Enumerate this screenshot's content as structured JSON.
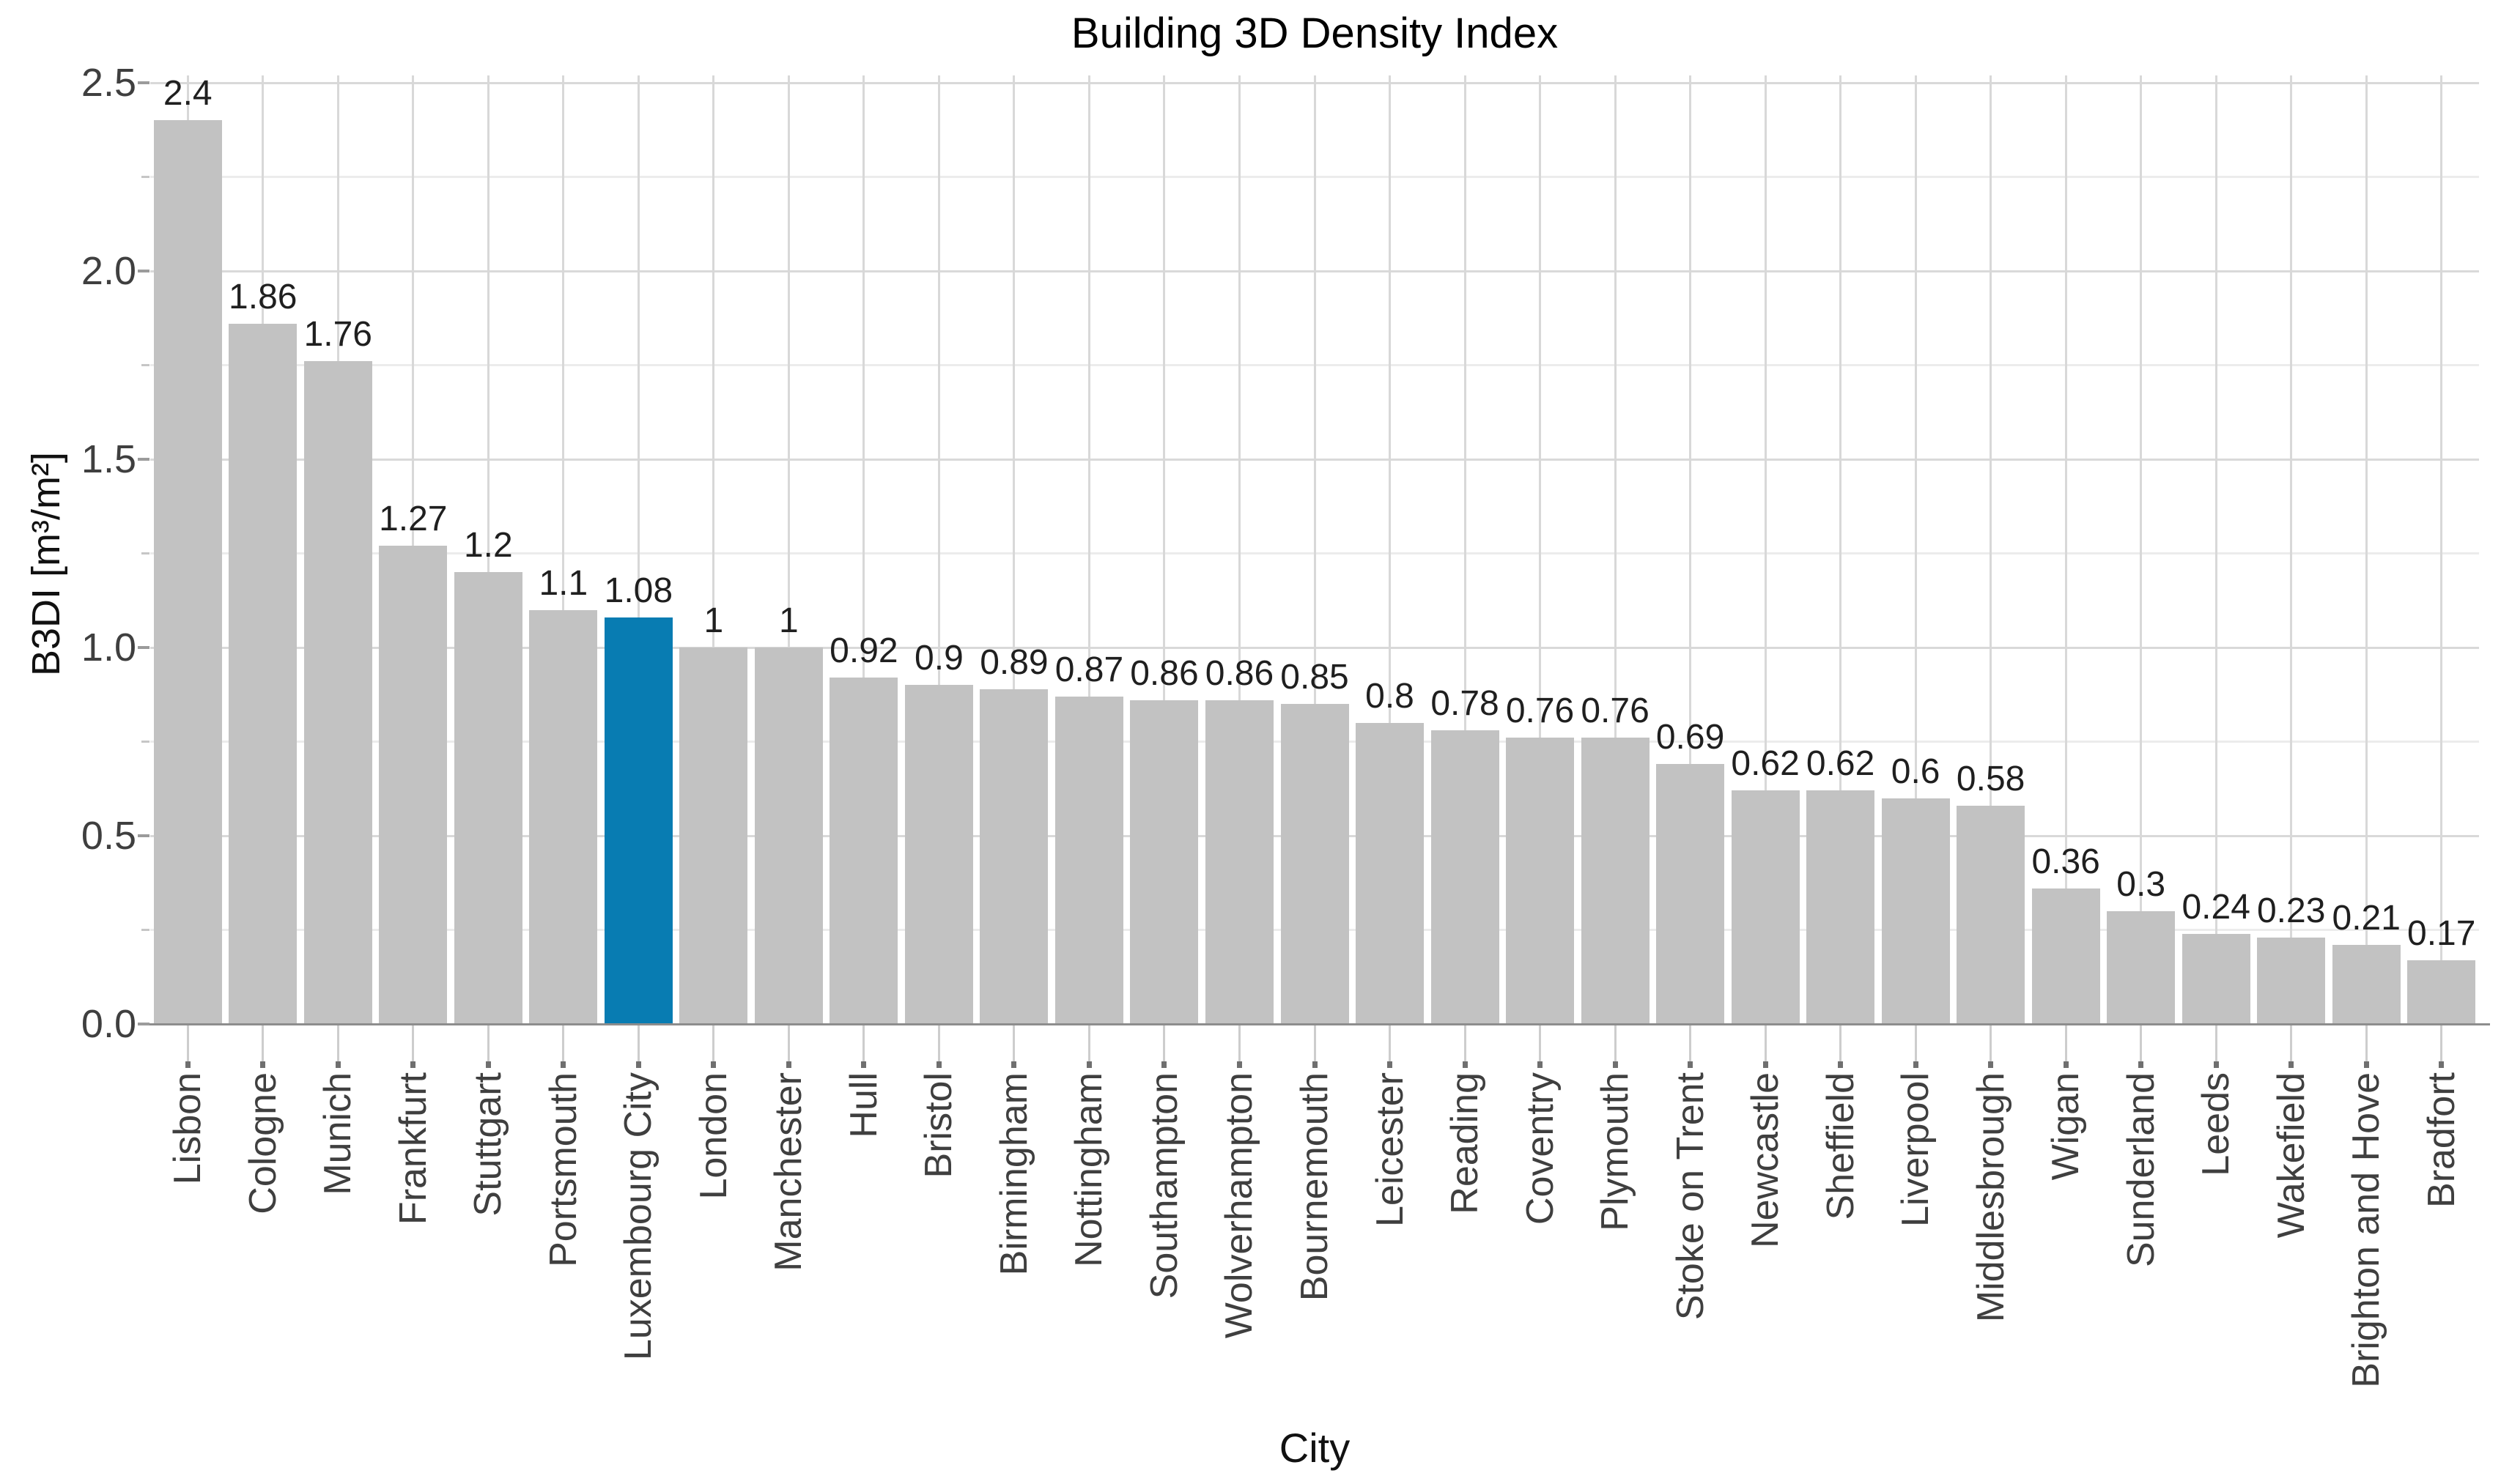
{
  "chart_data": {
    "type": "bar",
    "title": "Building 3D Density Index",
    "xlabel": "City",
    "ylabel": "B3DI [m³/m²]",
    "ylim": [
      0,
      2.5
    ],
    "y_major_step": 0.5,
    "y_minor_step": 0.25,
    "y_tick_labels": [
      "0.0",
      "0.5",
      "1.0",
      "1.5",
      "2.0",
      "2.5"
    ],
    "grid": "horizontal major+minor lines, vertical line at each category center",
    "legend_position": "none",
    "categories": [
      "Lisbon",
      "Cologne",
      "Munich",
      "Frankfurt",
      "Stuttgart",
      "Portsmouth",
      "Luxembourg City",
      "London",
      "Manchester",
      "Hull",
      "Bristol",
      "Birmingham",
      "Nottingham",
      "Southampton",
      "Wolverhampton",
      "Bournemouth",
      "Leicester",
      "Reading",
      "Coventry",
      "Plymouth",
      "Stoke on Trent",
      "Newcastle",
      "Sheffield",
      "Liverpool",
      "Middlesbrough",
      "Wigan",
      "Sunderland",
      "Leeds",
      "Wakefield",
      "Brighton and Hove",
      "Bradfort"
    ],
    "values": [
      2.4,
      1.86,
      1.76,
      1.27,
      1.2,
      1.1,
      1.08,
      1,
      1,
      0.92,
      0.9,
      0.89,
      0.87,
      0.86,
      0.86,
      0.85,
      0.8,
      0.78,
      0.76,
      0.76,
      0.69,
      0.62,
      0.62,
      0.6,
      0.58,
      0.36,
      0.3,
      0.24,
      0.23,
      0.21,
      0.17
    ],
    "value_labels": [
      "2.4",
      "1.86",
      "1.76",
      "1.27",
      "1.2",
      "1.1",
      "1.08",
      "1",
      "1",
      "0.92",
      "0.9",
      "0.89",
      "0.87",
      "0.86",
      "0.86",
      "0.85",
      "0.8",
      "0.78",
      "0.76",
      "0.76",
      "0.69",
      "0.62",
      "0.62",
      "0.6",
      "0.58",
      "0.36",
      "0.3",
      "0.24",
      "0.23",
      "0.21",
      "0.17"
    ],
    "highlight": {
      "category": "Luxembourg City",
      "index": 6,
      "color": "#087cb2"
    },
    "bar_color": "#c2c2c2",
    "colors": {
      "grid_major": "#d9d9d9",
      "grid_minor": "#ececec",
      "axis_line": "#8d8d8d",
      "tick_major": "#9b9b9b",
      "tick_minor": "#c6c6c6",
      "tick_text": "#3f3f3f",
      "value_label_text": "#1f1f1f",
      "title_text": "#000000"
    }
  }
}
